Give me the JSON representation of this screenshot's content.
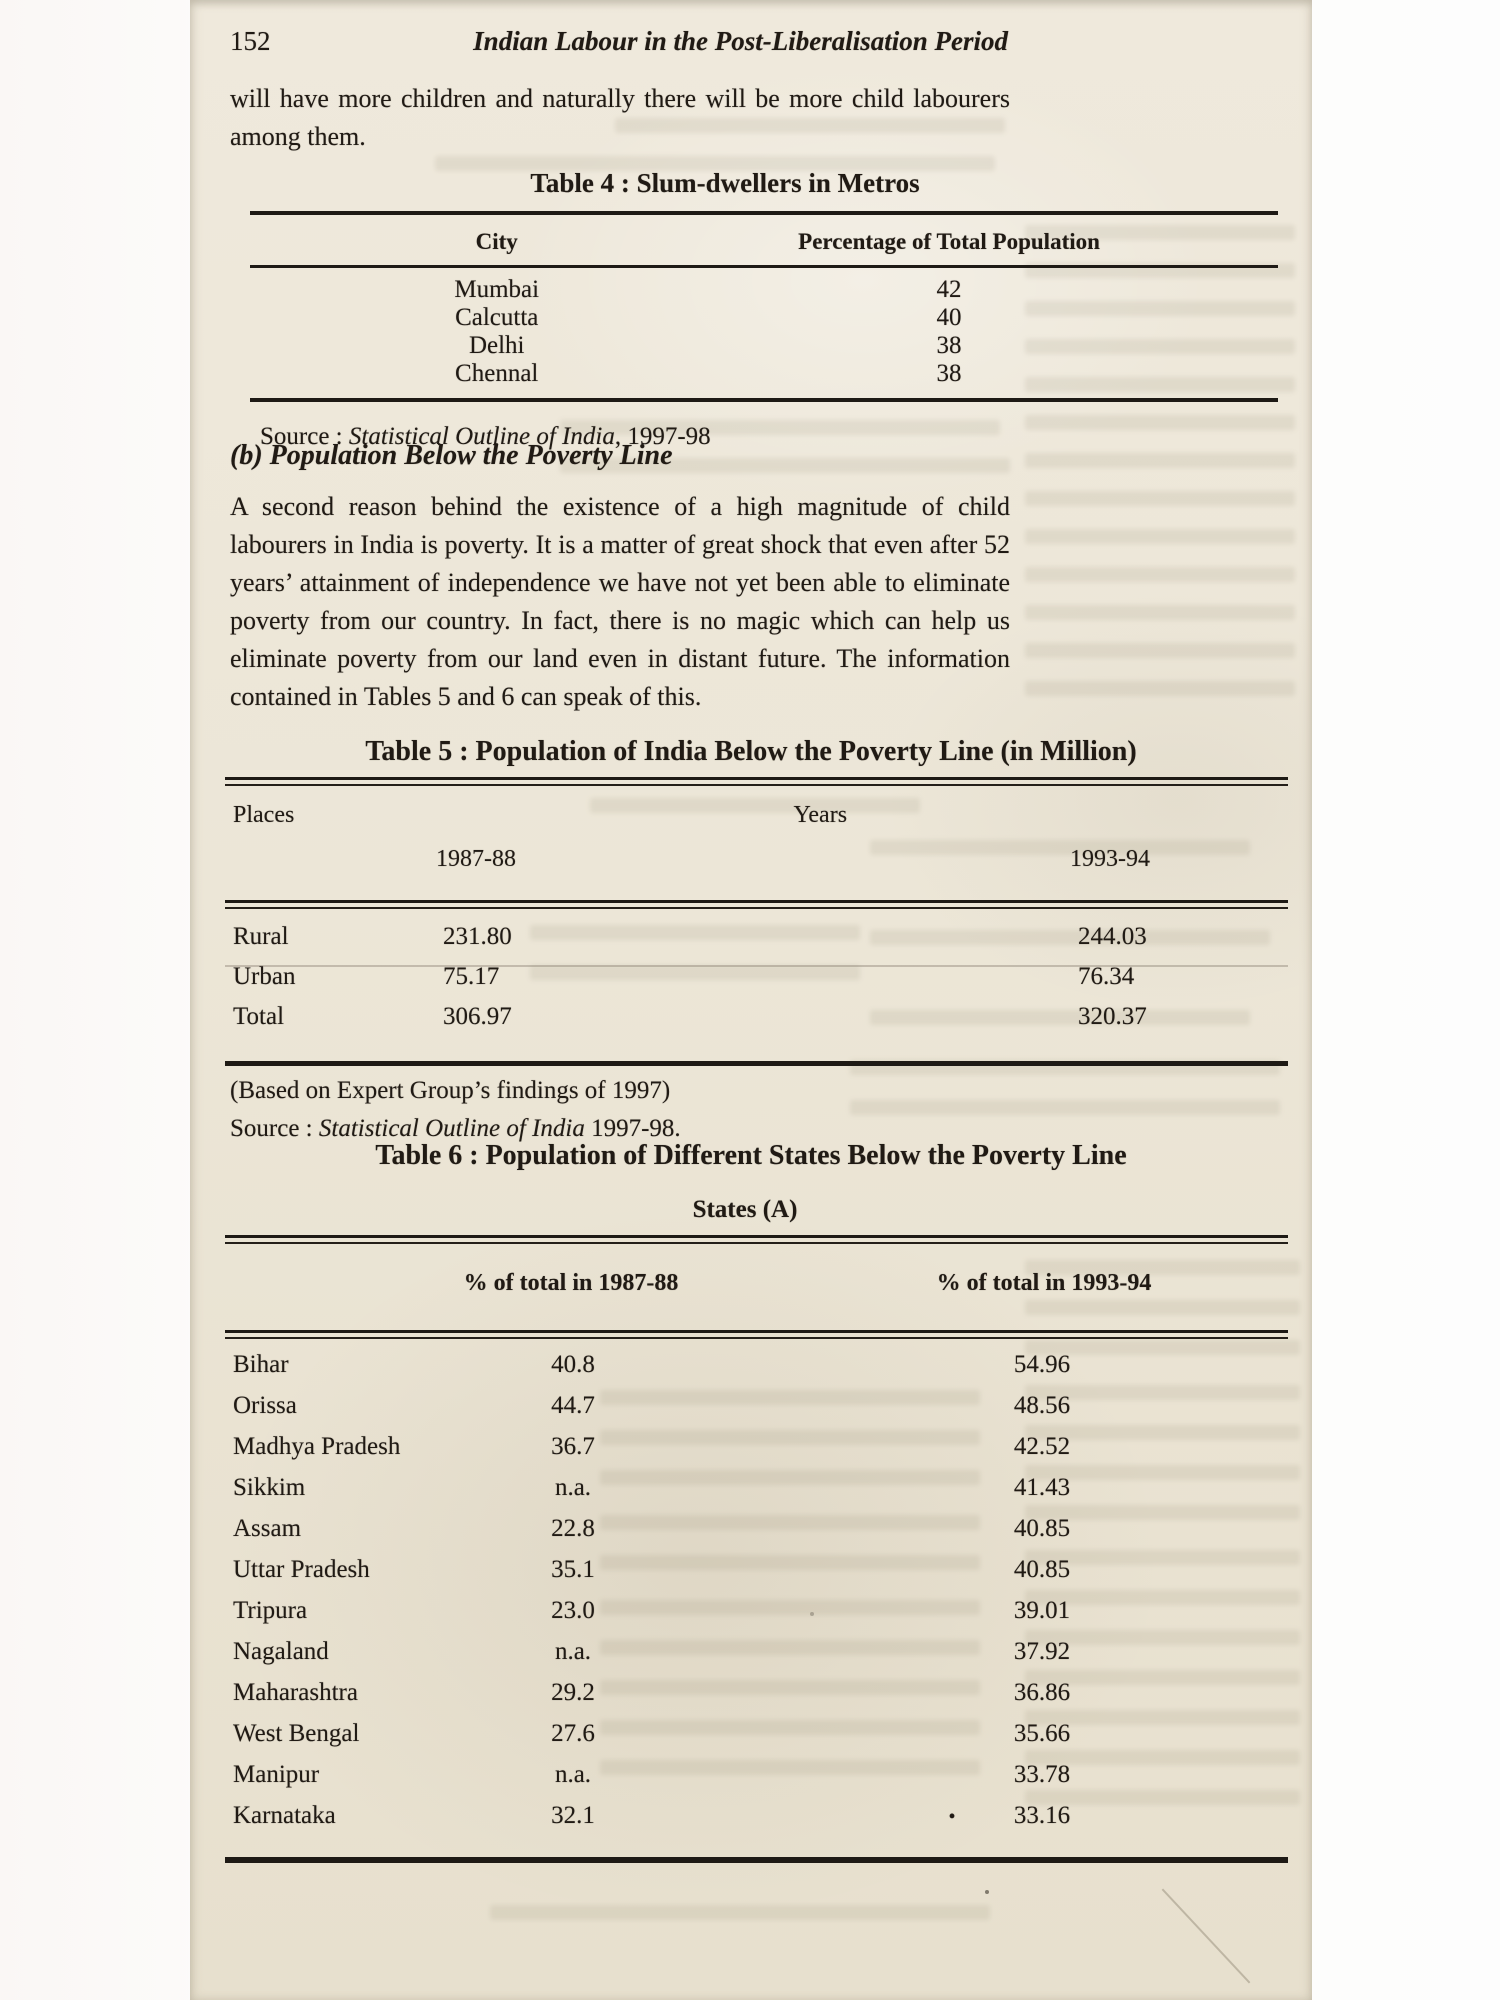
{
  "page": {
    "number": "152",
    "running_title": "Indian Labour in the Post-Liberalisation Period"
  },
  "paragraph1": "will have more children and naturally there will be more child labourers among them.",
  "table4": {
    "title": "Table 4 : Slum-dwellers in Metros",
    "col_city": "City",
    "col_pct": "Percentage of Total Population",
    "rows": [
      [
        "Mumbai",
        "42"
      ],
      [
        "Calcutta",
        "40"
      ],
      [
        "Delhi",
        "38"
      ],
      [
        "Chennal",
        "38"
      ]
    ],
    "source_prefix": "Source : ",
    "source_book": "Statistical Outline of India",
    "source_suffix": ", 1997-98"
  },
  "section_b": {
    "heading": "(b) Population Below the Poverty Line"
  },
  "paragraph2": "A second reason behind the existence of a high magnitude of child labourers in India is poverty. It is a matter of great shock that even after 52 years’ attainment of independence we have not yet been able to eliminate poverty from our country. In fact, there is no magic which can help us eliminate poverty from our land even in distant future. The information contained in Tables 5 and 6 can speak of this.",
  "table5": {
    "title": "Table 5 : Population of India Below the Poverty Line (in Million)",
    "col_places": "Places",
    "col_years": "Years",
    "col_1987": "1987-88",
    "col_1993": "1993-94",
    "rows": [
      [
        "Rural",
        "231.80",
        "244.03"
      ],
      [
        "Urban",
        "75.17",
        "76.34"
      ],
      [
        "Total",
        "306.97",
        "320.37"
      ]
    ],
    "note": "(Based on Expert Group’s findings of 1997)",
    "source_prefix": "Source : ",
    "source_book": "Statistical Outline of India",
    "source_suffix": " 1997-98."
  },
  "table6": {
    "title": "Table 6 : Population of Different States Below the Poverty Line",
    "subtitle": "States (A)",
    "col_1987": "% of total in 1987-88",
    "col_1993": "% of total in 1993-94",
    "rows": [
      {
        "state": "Bihar",
        "y1987": "40.8",
        "y1993": "54.96"
      },
      {
        "state": "Orissa",
        "y1987": "44.7",
        "y1993": "48.56"
      },
      {
        "state": "Madhya Pradesh",
        "y1987": "36.7",
        "y1993": "42.52"
      },
      {
        "state": "Sikkim",
        "y1987": "n.a.",
        "y1993": "41.43"
      },
      {
        "state": "Assam",
        "y1987": "22.8",
        "y1993": "40.85"
      },
      {
        "state": "Uttar Pradesh",
        "y1987": "35.1",
        "y1993": "40.85"
      },
      {
        "state": "Tripura",
        "y1987": "23.0",
        "y1993": "39.01"
      },
      {
        "state": "Nagaland",
        "y1987": "n.a.",
        "y1993": "37.92"
      },
      {
        "state": "Maharashtra",
        "y1987": "29.2",
        "y1993": "36.86"
      },
      {
        "state": "West Bengal",
        "y1987": "27.6",
        "y1993": "35.66"
      },
      {
        "state": "Manipur",
        "y1987": "n.a.",
        "y1993": "33.78"
      },
      {
        "state": "Karnataka",
        "y1987": "32.1",
        "y1993": "33.16",
        "marker": "•"
      }
    ]
  }
}
